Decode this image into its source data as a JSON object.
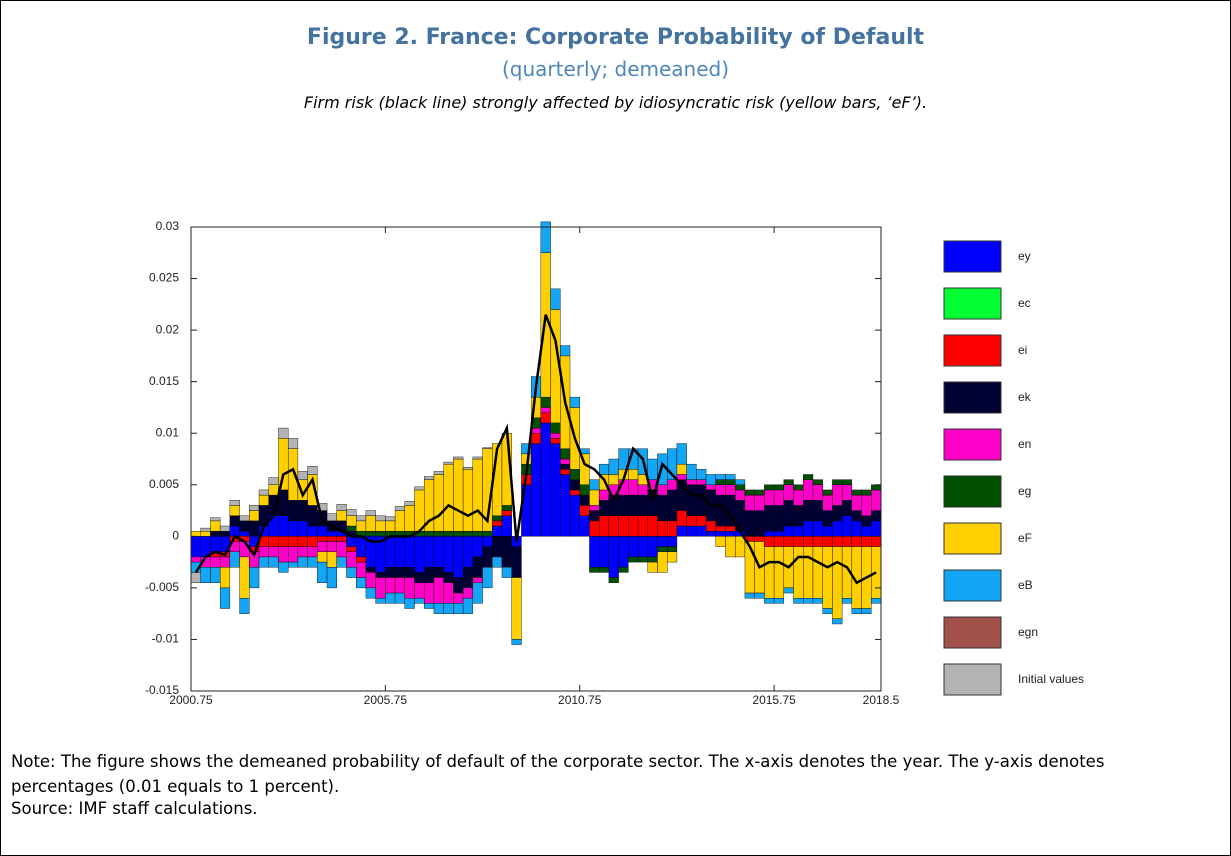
{
  "title": "Figure 2. France: Corporate Probability of Default",
  "subtitle": "(quarterly; demeaned)",
  "caption": "Firm risk (black line) strongly affected by idiosyncratic risk (yellow bars, ‘eF’).",
  "note": "Note: The figure shows the demeaned probability of default of the corporate sector. The x-axis denotes the year. The y-axis denotes percentages (0.01 equals to 1 percent).",
  "source": "Source: IMF staff calculations.",
  "chart_data": {
    "type": "bar",
    "stacked": true,
    "legend": "right",
    "grid": false,
    "xlim": [
      2000.75,
      2018.5
    ],
    "xticks": [
      2000.75,
      2005.75,
      2010.75,
      2015.75,
      2018.5
    ],
    "ylim": [
      -0.015,
      0.03
    ],
    "yticks": [
      -0.015,
      -0.01,
      -0.005,
      0,
      0.005,
      0.01,
      0.015,
      0.02,
      0.025,
      0.03
    ],
    "x": [
      2000.75,
      2001,
      2001.25,
      2001.5,
      2001.75,
      2002,
      2002.25,
      2002.5,
      2002.75,
      2003,
      2003.25,
      2003.5,
      2003.75,
      2004,
      2004.25,
      2004.5,
      2004.75,
      2005,
      2005.25,
      2005.5,
      2005.75,
      2006,
      2006.25,
      2006.5,
      2006.75,
      2007,
      2007.25,
      2007.5,
      2007.75,
      2008,
      2008.25,
      2008.5,
      2008.75,
      2009,
      2009.25,
      2009.5,
      2009.75,
      2010,
      2010.25,
      2010.5,
      2010.75,
      2011,
      2011.25,
      2011.5,
      2011.75,
      2012,
      2012.25,
      2012.5,
      2012.75,
      2013,
      2013.25,
      2013.5,
      2013.75,
      2014,
      2014.25,
      2014.5,
      2014.75,
      2015,
      2015.25,
      2015.5,
      2015.75,
      2016,
      2016.25,
      2016.5,
      2016.75,
      2017,
      2017.25,
      2017.5,
      2017.75,
      2018,
      2018.25
    ],
    "series": [
      {
        "name": "ey",
        "color": "#0000ff",
        "values": [
          -0.002,
          -0.002,
          -0.0015,
          -0.0015,
          0.001,
          0.0005,
          -0.001,
          0.001,
          0.002,
          0.002,
          0.0015,
          0.0015,
          0.001,
          0.001,
          0.0005,
          0.0005,
          -0.001,
          -0.002,
          -0.003,
          -0.0035,
          -0.003,
          -0.003,
          -0.003,
          -0.0035,
          -0.003,
          -0.003,
          -0.0035,
          -0.004,
          -0.003,
          -0.002,
          -0.001,
          0.001,
          0.002,
          -0.001,
          0.005,
          0.009,
          0.011,
          0.009,
          0.006,
          0.004,
          0.002,
          -0.003,
          -0.003,
          -0.004,
          -0.003,
          -0.002,
          -0.002,
          -0.002,
          -0.001,
          -0.001,
          0.001,
          0.001,
          0.001,
          0.0005,
          0.0005,
          0.0005,
          0.0005,
          0,
          0,
          0.0005,
          0.0005,
          0.001,
          0.001,
          0.0015,
          0.0015,
          0.001,
          0.0015,
          0.002,
          0.0015,
          0.001,
          0.0015
        ]
      },
      {
        "name": "ec",
        "color": "#00ff33",
        "values": [
          0,
          0,
          0,
          0,
          0,
          0,
          0,
          0,
          0,
          0,
          0,
          0,
          0,
          0,
          0,
          0,
          0,
          0,
          0,
          0,
          0,
          0,
          0,
          0,
          0,
          0,
          0,
          0,
          0,
          0,
          0,
          0,
          0,
          0,
          0,
          0,
          0,
          0,
          0,
          0,
          0,
          0,
          0,
          0,
          0,
          0,
          0,
          0,
          0,
          0,
          0,
          0,
          0,
          0,
          0,
          0,
          0,
          0,
          0,
          0,
          0,
          0,
          0,
          0,
          0,
          0,
          0,
          0,
          0,
          0,
          0
        ]
      },
      {
        "name": "ei",
        "color": "#ff0000",
        "values": [
          0,
          0,
          -0.0005,
          -0.0005,
          -0.0005,
          -0.0005,
          -0.0005,
          -0.001,
          -0.001,
          -0.001,
          -0.001,
          -0.001,
          -0.001,
          -0.0005,
          -0.0005,
          -0.0005,
          -0.0005,
          -0.0005,
          0,
          0,
          0,
          0,
          0,
          0,
          0,
          0,
          0,
          0,
          0,
          0,
          0,
          0.0005,
          0.0005,
          0,
          0.001,
          0.001,
          0.001,
          0.0005,
          0.0005,
          0.0005,
          0.001,
          0.0015,
          0.002,
          0.002,
          0.002,
          0.002,
          0.002,
          0.002,
          0.0015,
          0.0015,
          0.0015,
          0.001,
          0.001,
          0.001,
          0.0005,
          0.0005,
          0,
          -0.0005,
          -0.0005,
          -0.001,
          -0.001,
          -0.001,
          -0.001,
          -0.001,
          -0.001,
          -0.001,
          -0.001,
          -0.001,
          -0.001,
          -0.001,
          -0.001
        ]
      },
      {
        "name": "ek",
        "color": "#000033",
        "values": [
          0,
          0,
          0.0005,
          0.0005,
          0.001,
          0.001,
          0.0015,
          0.002,
          0.002,
          0.0025,
          0.002,
          0.002,
          0.002,
          0.0015,
          0.001,
          0.001,
          0.0005,
          0,
          -0.0005,
          -0.0005,
          -0.001,
          -0.001,
          -0.001,
          -0.001,
          -0.0015,
          -0.001,
          -0.001,
          -0.0015,
          -0.002,
          -0.002,
          -0.002,
          -0.002,
          -0.003,
          -0.003,
          0,
          0,
          0,
          0,
          0.0005,
          0.001,
          0.001,
          0.001,
          0.0015,
          0.002,
          0.002,
          0.002,
          0.002,
          0.0025,
          0.0025,
          0.003,
          0.003,
          0.003,
          0.003,
          0.003,
          0.003,
          0.003,
          0.003,
          0.0025,
          0.0025,
          0.0025,
          0.0025,
          0.0025,
          0.002,
          0.002,
          0.002,
          0.0015,
          0.0015,
          0.0015,
          0.001,
          0.001,
          0.001
        ]
      },
      {
        "name": "en",
        "color": "#ff00c8",
        "values": [
          -0.0005,
          -0.001,
          -0.001,
          -0.001,
          -0.001,
          -0.0015,
          -0.0015,
          -0.001,
          -0.001,
          -0.0015,
          -0.0015,
          -0.001,
          -0.001,
          -0.001,
          -0.001,
          -0.0015,
          -0.0015,
          -0.0015,
          -0.0015,
          -0.002,
          -0.0015,
          -0.0015,
          -0.002,
          -0.0015,
          -0.002,
          -0.0025,
          -0.002,
          -0.001,
          -0.001,
          -0.0005,
          0,
          0,
          0,
          0,
          0,
          0.0005,
          0.0005,
          0.0005,
          0.0005,
          0,
          0,
          0.0005,
          0.001,
          0.001,
          0.0015,
          0.0015,
          0.001,
          0.001,
          0.001,
          0.001,
          0.0005,
          0.0005,
          0.0005,
          0.0005,
          0.001,
          0.001,
          0.001,
          0.0015,
          0.0015,
          0.0015,
          0.0015,
          0.0015,
          0.0015,
          0.002,
          0.0015,
          0.0015,
          0.002,
          0.0015,
          0.0015,
          0.002,
          0.002
        ]
      },
      {
        "name": "eg",
        "color": "#005000",
        "values": [
          0,
          0,
          0,
          0,
          0,
          0,
          0,
          0,
          0,
          0,
          0,
          0,
          0,
          0,
          0,
          0,
          0.0005,
          0.0005,
          0.0005,
          0.0005,
          0.0005,
          0.0005,
          0.0005,
          0.0005,
          0.0005,
          0.0005,
          0.0005,
          0.0005,
          0.0005,
          0.0005,
          0.0005,
          0.0005,
          0.0005,
          0,
          0.001,
          0.001,
          0.001,
          0.001,
          0.001,
          0.001,
          0.001,
          -0.0005,
          -0.0005,
          -0.0005,
          -0.0005,
          -0.0005,
          -0.0005,
          -0.0005,
          -0.0005,
          -0.0005,
          0,
          0,
          0,
          0,
          0.0005,
          0.0005,
          0.0005,
          0.0005,
          0.0005,
          0.0005,
          0.0005,
          0.0005,
          0.0005,
          0.0005,
          0.0005,
          0.0005,
          0.0005,
          0.0005,
          0.0005,
          0.0005,
          0.0005
        ]
      },
      {
        "name": "eF",
        "color": "#ffd000",
        "values": [
          0.0005,
          0.0005,
          0.001,
          -0.002,
          0.001,
          -0.004,
          0.001,
          0.001,
          0.001,
          0.005,
          0.005,
          0.002,
          0.003,
          -0.001,
          -0.0015,
          0.001,
          0.001,
          0.001,
          0.0015,
          0.001,
          0.001,
          0.002,
          0.0025,
          0.004,
          0.005,
          0.0055,
          0.0065,
          0.007,
          0.006,
          0.007,
          0.008,
          0.007,
          0.007,
          -0.006,
          0.001,
          0.002,
          0.014,
          0.011,
          0.009,
          0.006,
          0.003,
          0.0015,
          0.0015,
          0.001,
          0.001,
          0.001,
          0.001,
          -0.001,
          -0.002,
          -0.001,
          0.001,
          0,
          0,
          0,
          -0.001,
          -0.002,
          -0.002,
          -0.005,
          -0.005,
          -0.005,
          -0.005,
          -0.004,
          -0.005,
          -0.005,
          -0.005,
          -0.006,
          -0.007,
          -0.005,
          -0.006,
          -0.006,
          -0.005
        ]
      },
      {
        "name": "eB",
        "color": "#14a5f5",
        "values": [
          -0.001,
          -0.0015,
          -0.0015,
          -0.002,
          -0.0015,
          -0.0015,
          -0.002,
          -0.001,
          -0.001,
          -0.001,
          -0.0005,
          -0.001,
          -0.001,
          -0.002,
          -0.002,
          -0.001,
          -0.001,
          -0.001,
          -0.001,
          -0.0005,
          -0.001,
          -0.001,
          -0.001,
          -0.0005,
          -0.0005,
          -0.001,
          -0.001,
          -0.001,
          -0.0015,
          -0.002,
          -0.002,
          -0.001,
          -0.001,
          -0.0005,
          0.001,
          0.002,
          0.003,
          0.002,
          0.001,
          0.001,
          0.0005,
          0.001,
          0.001,
          0.0015,
          0.002,
          0.002,
          0.0025,
          0.002,
          0.003,
          0.003,
          0.002,
          0.0015,
          0.001,
          0.001,
          0.0005,
          0.0005,
          0.0005,
          -0.0005,
          -0.0005,
          -0.0005,
          -0.0005,
          -0.0005,
          -0.0005,
          -0.0005,
          -0.0005,
          -0.0005,
          -0.0005,
          -0.0005,
          -0.0005,
          -0.0005,
          -0.0005
        ]
      },
      {
        "name": "egn",
        "color": "#a0524a",
        "values": [
          0,
          0,
          0,
          0,
          0,
          0,
          0,
          0,
          0,
          0,
          0,
          0,
          0,
          0,
          0,
          0,
          0,
          0,
          0,
          0,
          0,
          0,
          0,
          0,
          0,
          0,
          0,
          0,
          0,
          0,
          0,
          0,
          0,
          0,
          0,
          0,
          0,
          0,
          0,
          0,
          0,
          0,
          0,
          0,
          0,
          0,
          0,
          0,
          0,
          0,
          0,
          0,
          0,
          0,
          0,
          0,
          0,
          0,
          0,
          0,
          0,
          0,
          0,
          0,
          0,
          0,
          0,
          0,
          0,
          0,
          0
        ]
      },
      {
        "name": "Initial values",
        "color": "#b3b3b3",
        "values": [
          -0.001,
          0.0003,
          0.0003,
          0.0005,
          0.0005,
          0.0005,
          0.0005,
          0.0005,
          0.0007,
          0.001,
          0.001,
          0.0008,
          0.0008,
          0.0007,
          0.0007,
          0.0006,
          0.0006,
          0.0005,
          0.0005,
          0.0005,
          0.0004,
          0.0004,
          0.0004,
          0.0003,
          0.0003,
          0.0003,
          0.0002,
          0.0002,
          0.0002,
          0.0002,
          0.0001,
          0,
          0,
          0,
          0,
          0,
          0,
          0,
          0,
          0,
          0,
          0,
          0,
          0,
          0,
          0,
          0,
          0,
          0,
          0,
          0,
          0,
          0,
          0,
          0,
          0,
          0,
          0,
          0,
          0,
          0,
          0,
          0,
          0,
          0,
          0,
          0,
          0,
          0,
          0,
          0
        ]
      }
    ],
    "line": {
      "color": "#000000",
      "values": [
        -0.0035,
        -0.002,
        -0.0015,
        -0.0018,
        0,
        -0.0005,
        -0.0018,
        0.001,
        0.002,
        0.006,
        0.0065,
        0.004,
        0.0055,
        0.0015,
        0.001,
        0.0005,
        0,
        0,
        -0.0005,
        -0.0005,
        0,
        0,
        0,
        0.0005,
        0.0015,
        0.002,
        0.003,
        0.0025,
        0.002,
        0.0025,
        0.0015,
        0.0085,
        0.0105,
        -0.0005,
        0.006,
        0.0145,
        0.0215,
        0.019,
        0.013,
        0.0095,
        0.007,
        0.0065,
        0.0055,
        0.0035,
        0.0055,
        0.0085,
        0.0075,
        0.0035,
        0.007,
        0.006,
        0.005,
        0.004,
        0.004,
        0.003,
        0.003,
        0.002,
        0.0005,
        -0.001,
        -0.003,
        -0.0025,
        -0.0025,
        -0.003,
        -0.002,
        -0.002,
        -0.0025,
        -0.003,
        -0.0025,
        -0.003,
        -0.0045,
        -0.004,
        -0.0035
      ]
    }
  }
}
